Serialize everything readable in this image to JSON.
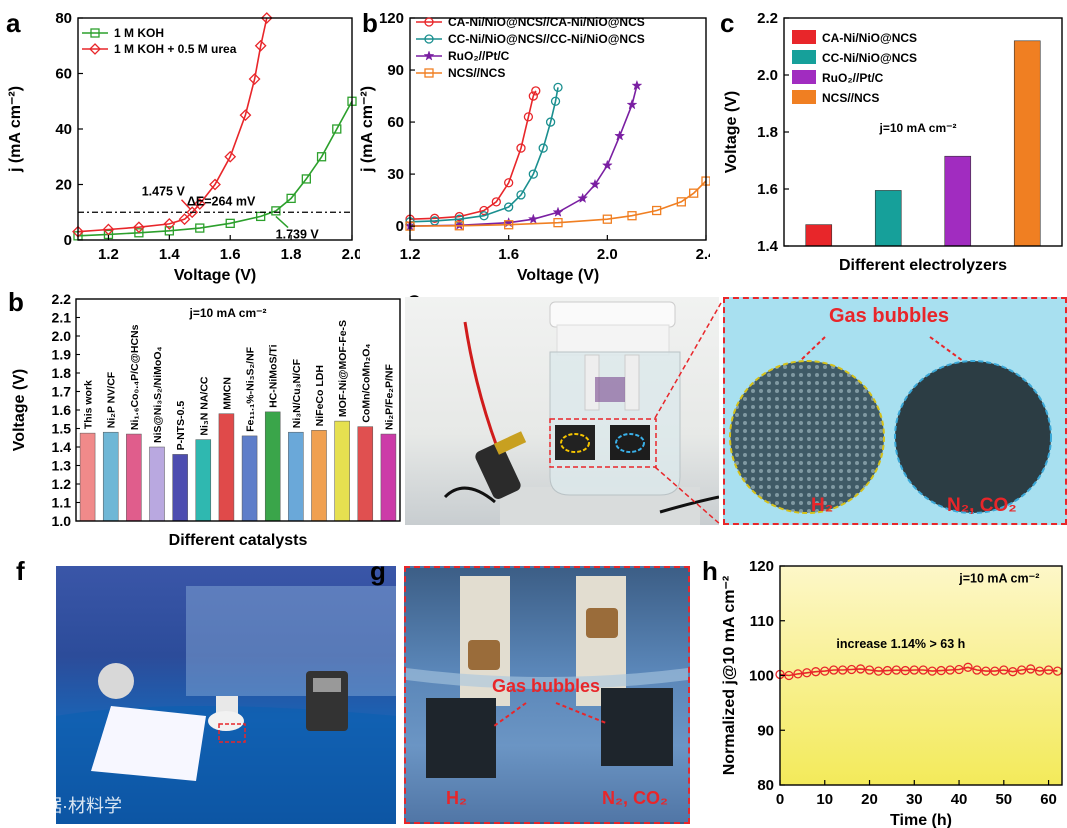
{
  "panel_labels": {
    "a": "a",
    "b_top": "b",
    "c": "c",
    "b_bottom": "b",
    "e": "e",
    "f": "f",
    "g": "g",
    "h": "h"
  },
  "chart_data": [
    {
      "id": "a",
      "type": "line",
      "xlabel": "Voltage (V)",
      "ylabel": "j (mA cm⁻²)",
      "xlim": [
        1.1,
        2.0
      ],
      "ylim": [
        0,
        80
      ],
      "xticks": [
        1.2,
        1.4,
        1.6,
        1.8,
        2.0
      ],
      "xtick_labels": [
        "1.2",
        "1.4",
        "1.6",
        "1.8",
        "2.0"
      ],
      "yticks": [
        0,
        20,
        40,
        60,
        80
      ],
      "legend_position": "top-left",
      "series": [
        {
          "name": "1 M KOH",
          "color": "#2ca02c",
          "marker": "square",
          "x": [
            1.1,
            1.2,
            1.3,
            1.4,
            1.5,
            1.6,
            1.7,
            1.75,
            1.8,
            1.85,
            1.9,
            1.95,
            2.0
          ],
          "y": [
            1.5,
            2.0,
            2.6,
            3.3,
            4.3,
            6.0,
            8.5,
            10.5,
            15,
            22,
            30,
            40,
            50
          ]
        },
        {
          "name": "1 M KOH + 0.5 M urea",
          "color": "#e8262a",
          "marker": "diamond",
          "x": [
            1.1,
            1.2,
            1.3,
            1.4,
            1.45,
            1.475,
            1.5,
            1.55,
            1.6,
            1.65,
            1.68,
            1.7,
            1.72
          ],
          "y": [
            3.0,
            3.8,
            4.6,
            5.8,
            7.5,
            10.0,
            13.0,
            20,
            30,
            45,
            58,
            70,
            80
          ]
        }
      ],
      "hline": {
        "y": 10
      },
      "annotations": [
        {
          "text": "1.475 V",
          "x": 1.38,
          "y": 16
        },
        {
          "text": "ΔE=264 mV",
          "x": 1.57,
          "y": 12.5
        },
        {
          "text": "1.739 V",
          "x": 1.82,
          "y": 0.5
        }
      ]
    },
    {
      "id": "b_top",
      "type": "line",
      "xlabel": "Voltage (V)",
      "ylabel": "j (mA cm⁻²)",
      "xlim": [
        1.2,
        2.4
      ],
      "ylim": [
        -8,
        120
      ],
      "xticks": [
        1.2,
        1.6,
        2.0,
        2.4
      ],
      "xtick_labels": [
        "1.2",
        "1.6",
        "2.0",
        "2.4"
      ],
      "yticks": [
        0,
        30,
        60,
        90,
        120
      ],
      "legend_position": "top-left",
      "series": [
        {
          "name": "CA-Ni/NiO@NCS//CA-Ni/NiO@NCS",
          "color": "#e8262a",
          "marker": "circle",
          "x": [
            1.2,
            1.3,
            1.4,
            1.5,
            1.55,
            1.6,
            1.65,
            1.68,
            1.7,
            1.71
          ],
          "y": [
            4,
            4.5,
            5.5,
            9,
            14,
            25,
            45,
            63,
            75,
            78
          ]
        },
        {
          "name": "CC-Ni/NiO@NCS//CC-Ni/NiO@NCS",
          "color": "#1a8f8f",
          "marker": "circle",
          "x": [
            1.2,
            1.3,
            1.4,
            1.5,
            1.6,
            1.65,
            1.7,
            1.74,
            1.77,
            1.79,
            1.8
          ],
          "y": [
            2.5,
            3,
            4,
            6,
            11,
            18,
            30,
            45,
            60,
            72,
            80
          ]
        },
        {
          "name": "RuO₂//Pt/C",
          "color": "#7a1fa2",
          "marker": "star",
          "x": [
            1.2,
            1.4,
            1.6,
            1.7,
            1.8,
            1.9,
            1.95,
            2.0,
            2.05,
            2.1,
            2.12
          ],
          "y": [
            0,
            0.5,
            2,
            4,
            8,
            16,
            24,
            35,
            52,
            70,
            81
          ]
        },
        {
          "name": "NCS//NCS",
          "color": "#f07f22",
          "marker": "square",
          "x": [
            1.2,
            1.4,
            1.6,
            1.8,
            2.0,
            2.1,
            2.2,
            2.3,
            2.35,
            2.4
          ],
          "y": [
            0,
            0.2,
            0.8,
            2,
            4,
            6,
            9,
            14,
            19,
            26
          ]
        }
      ]
    },
    {
      "id": "c",
      "type": "bar",
      "xlabel": "Different electrolyzers",
      "ylabel": "Voltage (V)",
      "ylim": [
        1.4,
        2.2
      ],
      "yticks": [
        1.4,
        1.6,
        1.8,
        2.0,
        2.2
      ],
      "categories": [
        "CA-Ni/NiO@NCS",
        "CC-Ni/NiO@NCS",
        "RuO₂//Pt/C",
        "NCS//NCS"
      ],
      "values": [
        1.475,
        1.595,
        1.715,
        2.12
      ],
      "colors": [
        "#e8262a",
        "#16a09a",
        "#a12cc0",
        "#f07f22"
      ],
      "annotation": "j=10 mA cm⁻²",
      "legend_position": "top-left"
    },
    {
      "id": "b_bottom",
      "type": "bar",
      "xlabel": "Different catalysts",
      "ylabel": "Voltage (V)",
      "ylim": [
        1.0,
        2.2
      ],
      "yticks": [
        1.0,
        1.1,
        1.2,
        1.3,
        1.4,
        1.5,
        1.6,
        1.7,
        1.8,
        1.9,
        2.0,
        2.1,
        2.2
      ],
      "annotation": "j=10 mA cm⁻²",
      "categories": [
        "This work",
        "Ni₂P NV/CF",
        "Ni₁.₆Co₀.₄P/C@HCNs",
        "NiS@Ni₃S₂/NiMoO₄",
        "P-NTS-0.5",
        "Ni₃N NA/CC",
        "MMCN",
        "Fe₁₁.₁%-Ni₃S₂/NF",
        "HC-NiMoS/Ti",
        "Ni₃N/Cu₃N/CF",
        "NiFeCo LDH",
        "MOF-Ni@MOF-Fe-S",
        "CoMn/CoMn₂O₄",
        "Ni₂P/Fe₂P/NF"
      ],
      "values": [
        1.475,
        1.48,
        1.47,
        1.4,
        1.36,
        1.44,
        1.58,
        1.46,
        1.59,
        1.48,
        1.49,
        1.54,
        1.51,
        1.47
      ],
      "colors": [
        "#f08a8a",
        "#6fb7d6",
        "#e05d8c",
        "#b9a8e0",
        "#4d4db0",
        "#2fb8b0",
        "#e04a4a",
        "#5f7ec9",
        "#3aa54a",
        "#6aa8d9",
        "#f0a050",
        "#e6e050",
        "#e05050",
        "#cc3ba8"
      ]
    },
    {
      "id": "h",
      "type": "line",
      "xlabel": "Time (h)",
      "ylabel": "Normalized j@10 mA cm⁻²",
      "xlim": [
        0,
        63
      ],
      "ylim": [
        80,
        120
      ],
      "xticks": [
        0,
        10,
        20,
        30,
        40,
        50,
        60
      ],
      "yticks": [
        80,
        90,
        100,
        110,
        120
      ],
      "series": [
        {
          "color": "#e8262a",
          "marker": "circle",
          "x": [
            0,
            2,
            4,
            6,
            8,
            10,
            12,
            14,
            16,
            18,
            20,
            22,
            24,
            26,
            28,
            30,
            32,
            34,
            36,
            38,
            40,
            42,
            44,
            46,
            48,
            50,
            52,
            54,
            56,
            58,
            60,
            62
          ],
          "y": [
            100.2,
            100.0,
            100.3,
            100.5,
            100.7,
            100.8,
            101.0,
            101.0,
            101.1,
            101.2,
            101.0,
            100.8,
            100.9,
            101.0,
            100.9,
            101.0,
            101.0,
            100.8,
            100.9,
            101.0,
            101.1,
            101.5,
            101.0,
            100.8,
            100.8,
            101.0,
            100.7,
            101.0,
            101.2,
            100.8,
            101.0,
            100.8
          ]
        }
      ],
      "annotations": [
        {
          "text": "j=10 mA cm⁻²",
          "x": 49,
          "y": 117
        },
        {
          "text": "increase 1.14% > 63 h",
          "x": 27,
          "y": 105
        }
      ]
    }
  ],
  "photo_e": {
    "title": "Gas bubbles",
    "left_label": "H₂",
    "right_label": "N₂, CO₂"
  },
  "photo_g": {
    "title": "Gas bubbles",
    "left_label": "H₂",
    "right_label": "N₂, CO₂"
  },
  "watermark": "大数据·材料学"
}
